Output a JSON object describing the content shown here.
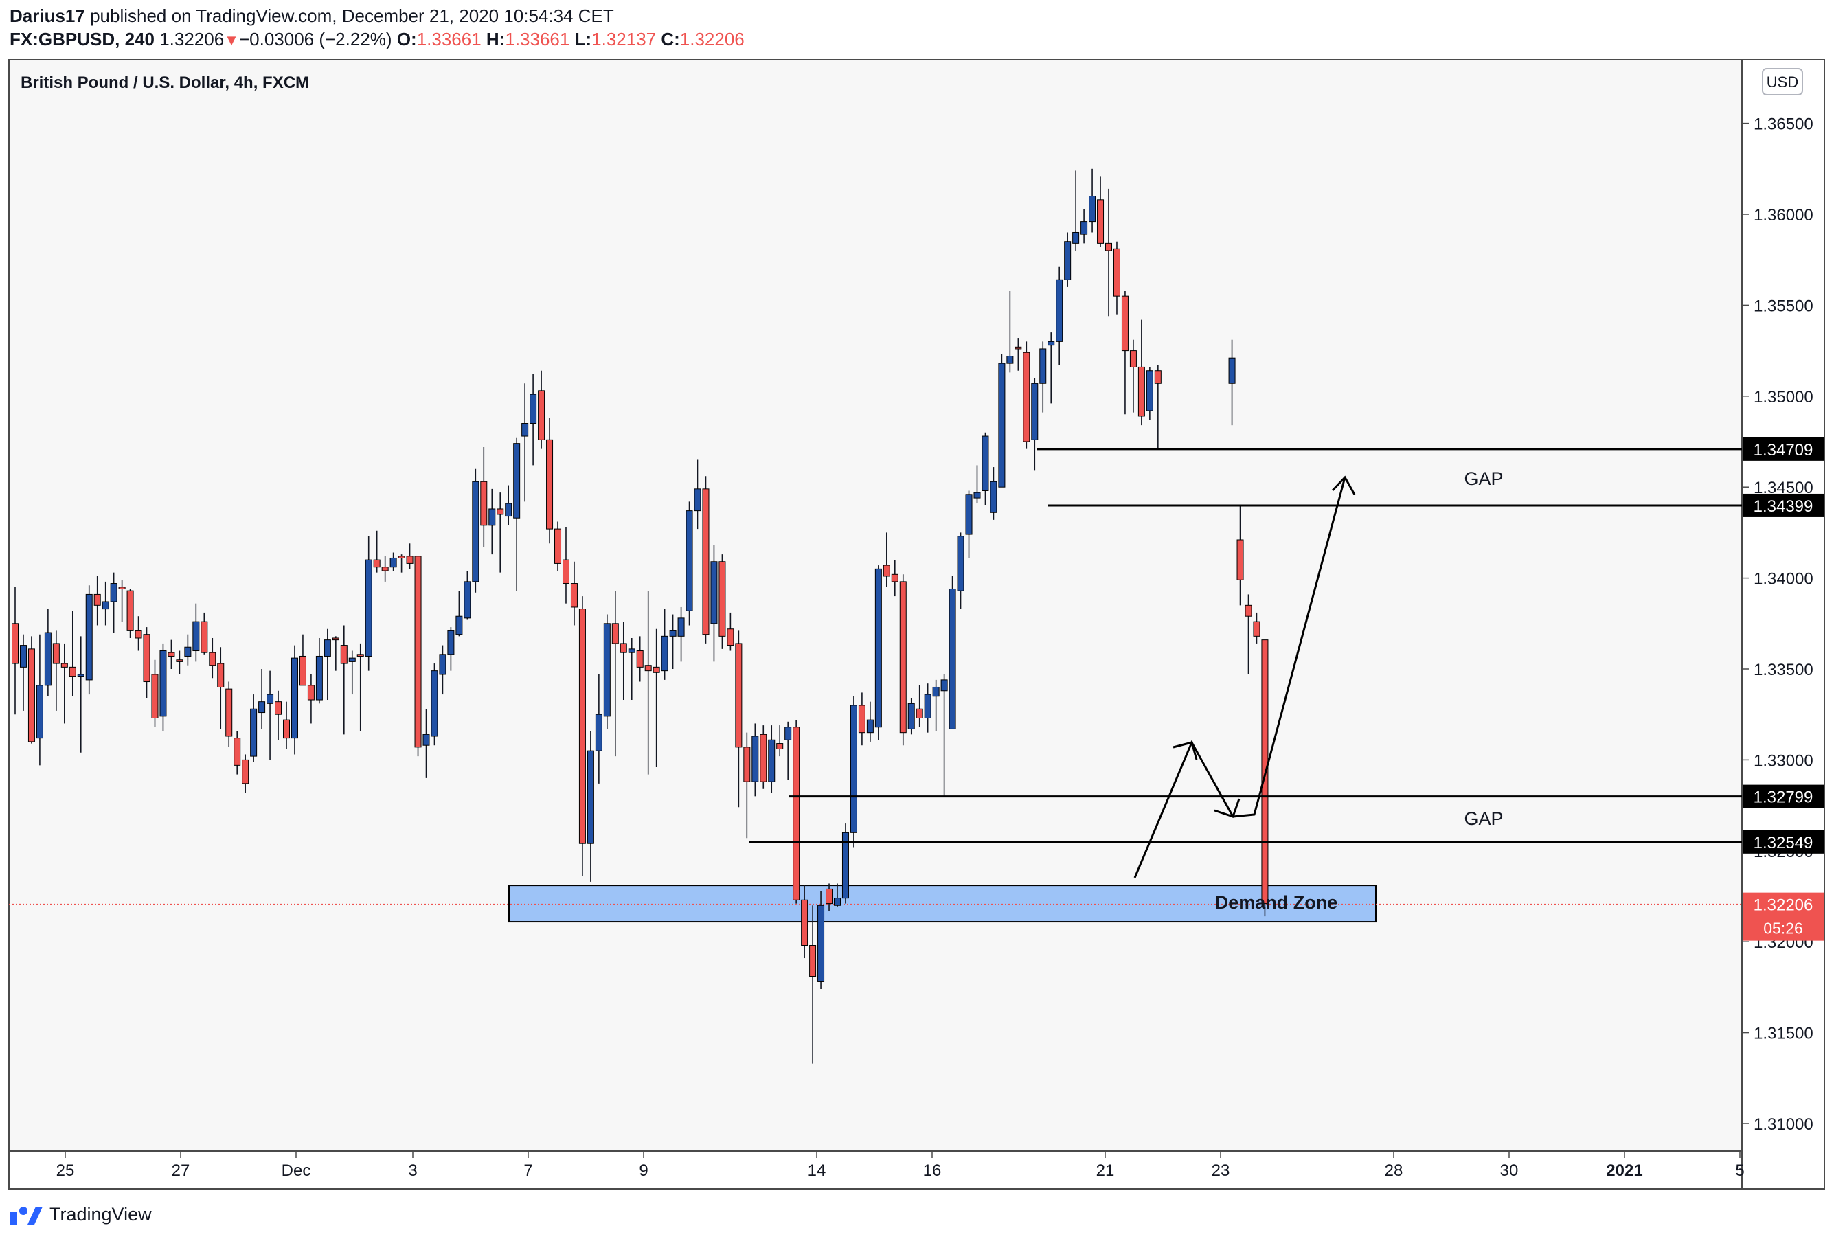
{
  "header": {
    "author": "Darius17",
    "published_text": " published on TradingView.com, December 21, 2020 10:54:34 CET",
    "symbol": "FX:GBPUSD, 240",
    "last": "1.32206",
    "change": "−0.03006 (−2.22%)",
    "o_label": "O:",
    "o_value": "1.33661",
    "h_label": "H:",
    "h_value": "1.33661",
    "l_label": "L:",
    "l_value": "1.32137",
    "c_label": "C:",
    "c_value": "1.32206"
  },
  "footer": {
    "brand": "TradingView"
  },
  "colors": {
    "up": "#2151a5",
    "down": "#ef5350",
    "wick": "#131722",
    "zone": "#9dc3f7",
    "background": "#f7f7f7"
  },
  "chart_data": {
    "type": "candlestick",
    "title": "British Pound / U.S. Dollar, 4h, FXCM",
    "currency_button": "USD",
    "ylim": [
      1.3065,
      1.3705
    ],
    "y_ticks": [
      "1.31000",
      "1.31500",
      "1.32000",
      "1.32500",
      "1.33000",
      "1.33500",
      "1.34000",
      "1.34500",
      "1.35000",
      "1.35500",
      "1.36000",
      "1.36500"
    ],
    "x_ticks": [
      "25",
      "27",
      "Dec",
      "3",
      "7",
      "9",
      "14",
      "16",
      "21",
      "23",
      "28",
      "30",
      "2021",
      "5"
    ],
    "price_labels": [
      {
        "value": 1.34709,
        "text": "1.34709"
      },
      {
        "value": 1.34399,
        "text": "1.34399"
      },
      {
        "value": 1.32799,
        "text": "1.32799"
      },
      {
        "value": 1.32549,
        "text": "1.32549"
      }
    ],
    "last_price": {
      "value": 1.32206,
      "text": "1.32206",
      "countdown": "05:26"
    },
    "annotations": {
      "gap_upper": "GAP",
      "gap_lower": "GAP",
      "demand_zone_label": "Demand Zone",
      "demand_zone": [
        1.3211,
        1.3231
      ]
    },
    "candles": [
      [
        1.3375,
        1.3353,
        1.3395,
        1.3325
      ],
      [
        1.3351,
        1.3363,
        1.3369,
        1.3327
      ],
      [
        1.3361,
        1.331,
        1.3368,
        1.3309
      ],
      [
        1.3312,
        1.3341,
        1.3369,
        1.3297
      ],
      [
        1.3341,
        1.337,
        1.3383,
        1.3335
      ],
      [
        1.3364,
        1.3353,
        1.3371,
        1.3327
      ],
      [
        1.3353,
        1.3351,
        1.3364,
        1.332
      ],
      [
        1.3351,
        1.3346,
        1.3382,
        1.3335
      ],
      [
        1.3346,
        1.3347,
        1.3368,
        1.3304
      ],
      [
        1.3344,
        1.3391,
        1.3396,
        1.3336
      ],
      [
        1.3391,
        1.3385,
        1.3401,
        1.3374
      ],
      [
        1.3383,
        1.3387,
        1.3398,
        1.3374
      ],
      [
        1.3387,
        1.3397,
        1.3403,
        1.337
      ],
      [
        1.3395,
        1.3394,
        1.3399,
        1.3376
      ],
      [
        1.3393,
        1.3371,
        1.3394,
        1.3367
      ],
      [
        1.3371,
        1.3367,
        1.3379,
        1.336
      ],
      [
        1.3369,
        1.3343,
        1.3373,
        1.3334
      ],
      [
        1.3347,
        1.3323,
        1.3355,
        1.3318
      ],
      [
        1.3324,
        1.336,
        1.3364,
        1.3316
      ],
      [
        1.3359,
        1.3357,
        1.3366,
        1.335
      ],
      [
        1.3355,
        1.3354,
        1.336,
        1.3347
      ],
      [
        1.3357,
        1.3362,
        1.3369,
        1.3352
      ],
      [
        1.336,
        1.3376,
        1.3386,
        1.3354
      ],
      [
        1.3376,
        1.3359,
        1.3381,
        1.3358
      ],
      [
        1.3359,
        1.3352,
        1.3367,
        1.3345
      ],
      [
        1.3353,
        1.334,
        1.3362,
        1.3317
      ],
      [
        1.3339,
        1.3313,
        1.3343,
        1.3307
      ],
      [
        1.3312,
        1.3297,
        1.3316,
        1.3292
      ],
      [
        1.33,
        1.3287,
        1.3303,
        1.3282
      ],
      [
        1.3302,
        1.3328,
        1.3336,
        1.3299
      ],
      [
        1.3326,
        1.3332,
        1.335,
        1.3317
      ],
      [
        1.3331,
        1.3336,
        1.3349,
        1.33
      ],
      [
        1.3332,
        1.3325,
        1.3338,
        1.3311
      ],
      [
        1.3322,
        1.3312,
        1.3332,
        1.3306
      ],
      [
        1.3312,
        1.3356,
        1.3363,
        1.3303
      ],
      [
        1.3357,
        1.3341,
        1.3369,
        1.3341
      ],
      [
        1.3341,
        1.3333,
        1.3347,
        1.332
      ],
      [
        1.3333,
        1.3357,
        1.3367,
        1.3331
      ],
      [
        1.3357,
        1.3366,
        1.3372,
        1.3333
      ],
      [
        1.3367,
        1.3366,
        1.3368,
        1.3349
      ],
      [
        1.3363,
        1.3353,
        1.3374,
        1.3314
      ],
      [
        1.3354,
        1.3356,
        1.336,
        1.3336
      ],
      [
        1.3358,
        1.3357,
        1.3364,
        1.3316
      ],
      [
        1.3357,
        1.341,
        1.3423,
        1.3349
      ],
      [
        1.341,
        1.3406,
        1.3426,
        1.3403
      ],
      [
        1.3406,
        1.3404,
        1.3412,
        1.3398
      ],
      [
        1.3406,
        1.3411,
        1.3414,
        1.3404
      ],
      [
        1.3412,
        1.3411,
        1.3413,
        1.3403
      ],
      [
        1.3412,
        1.3408,
        1.3419,
        1.3405
      ],
      [
        1.3412,
        1.3307,
        1.3412,
        1.3302
      ],
      [
        1.3308,
        1.3314,
        1.3328,
        1.329
      ],
      [
        1.3313,
        1.3349,
        1.3353,
        1.3308
      ],
      [
        1.3347,
        1.3358,
        1.3363,
        1.3336
      ],
      [
        1.3358,
        1.3371,
        1.3373,
        1.3349
      ],
      [
        1.3369,
        1.3379,
        1.3393,
        1.3368
      ],
      [
        1.3378,
        1.3398,
        1.3404,
        1.3377
      ],
      [
        1.3398,
        1.3453,
        1.346,
        1.3392
      ],
      [
        1.3453,
        1.3429,
        1.3472,
        1.3417
      ],
      [
        1.3429,
        1.3438,
        1.3449,
        1.3413
      ],
      [
        1.3438,
        1.3435,
        1.3447,
        1.3403
      ],
      [
        1.3434,
        1.3441,
        1.3451,
        1.3429
      ],
      [
        1.3433,
        1.3474,
        1.3477,
        1.3393
      ],
      [
        1.3478,
        1.3485,
        1.3507,
        1.3442
      ],
      [
        1.3485,
        1.3501,
        1.3512,
        1.3462
      ],
      [
        1.3503,
        1.3476,
        1.3514,
        1.3471
      ],
      [
        1.3476,
        1.3427,
        1.3488,
        1.3419
      ],
      [
        1.3427,
        1.3408,
        1.3431,
        1.3404
      ],
      [
        1.341,
        1.3397,
        1.3428,
        1.3386
      ],
      [
        1.3397,
        1.3384,
        1.3409,
        1.3374
      ],
      [
        1.3383,
        1.3254,
        1.339,
        1.3236
      ],
      [
        1.3254,
        1.3305,
        1.3316,
        1.3233
      ],
      [
        1.3305,
        1.3325,
        1.3347,
        1.3287
      ],
      [
        1.3324,
        1.3375,
        1.338,
        1.3317
      ],
      [
        1.3375,
        1.3364,
        1.3393,
        1.3302
      ],
      [
        1.3364,
        1.3359,
        1.3376,
        1.3333
      ],
      [
        1.3359,
        1.3361,
        1.3367,
        1.3333
      ],
      [
        1.336,
        1.3351,
        1.3368,
        1.3343
      ],
      [
        1.3352,
        1.3349,
        1.3393,
        1.3292
      ],
      [
        1.3351,
        1.3348,
        1.3372,
        1.3296
      ],
      [
        1.3349,
        1.3368,
        1.3383,
        1.3344
      ],
      [
        1.3368,
        1.3371,
        1.338,
        1.335
      ],
      [
        1.3368,
        1.3378,
        1.3384,
        1.3354
      ],
      [
        1.3382,
        1.3437,
        1.3442,
        1.3374
      ],
      [
        1.3437,
        1.3449,
        1.3465,
        1.3427
      ],
      [
        1.3449,
        1.3369,
        1.3456,
        1.3364
      ],
      [
        1.3375,
        1.3409,
        1.3418,
        1.3354
      ],
      [
        1.3409,
        1.3368,
        1.3413,
        1.3361
      ],
      [
        1.3372,
        1.3363,
        1.3381,
        1.336
      ],
      [
        1.3364,
        1.3307,
        1.3371,
        1.3274
      ],
      [
        1.3307,
        1.3288,
        1.3315,
        1.3257
      ],
      [
        1.3288,
        1.3313,
        1.332,
        1.328
      ],
      [
        1.3314,
        1.3288,
        1.3319,
        1.3284
      ],
      [
        1.3288,
        1.3311,
        1.3319,
        1.3282
      ],
      [
        1.3309,
        1.3306,
        1.3319,
        1.3302
      ],
      [
        1.3311,
        1.3318,
        1.3321,
        1.3289
      ],
      [
        1.3318,
        1.3223,
        1.3322,
        1.3221
      ],
      [
        1.3223,
        1.3198,
        1.3231,
        1.3191
      ],
      [
        1.3198,
        1.3181,
        1.322,
        1.3133
      ],
      [
        1.3178,
        1.322,
        1.3228,
        1.3174
      ],
      [
        1.3229,
        1.3221,
        1.3232,
        1.3217
      ],
      [
        1.322,
        1.3224,
        1.3232,
        1.3219
      ],
      [
        1.3224,
        1.326,
        1.3265,
        1.3221
      ],
      [
        1.326,
        1.333,
        1.3335,
        1.3252
      ],
      [
        1.333,
        1.3315,
        1.3337,
        1.3308
      ],
      [
        1.3315,
        1.3322,
        1.3332,
        1.331
      ],
      [
        1.3318,
        1.3405,
        1.3407,
        1.3311
      ],
      [
        1.3407,
        1.3401,
        1.3425,
        1.3395
      ],
      [
        1.3402,
        1.3398,
        1.341,
        1.339
      ],
      [
        1.3398,
        1.3315,
        1.3402,
        1.3308
      ],
      [
        1.3317,
        1.3331,
        1.3334,
        1.3314
      ],
      [
        1.3328,
        1.3323,
        1.3341,
        1.3318
      ],
      [
        1.3323,
        1.3336,
        1.3342,
        1.3315
      ],
      [
        1.3335,
        1.334,
        1.3344,
        1.3316
      ],
      [
        1.3338,
        1.3344,
        1.3347,
        1.328
      ],
      [
        1.3317,
        1.3394,
        1.3401,
        1.3317
      ],
      [
        1.3393,
        1.3423,
        1.3425,
        1.3383
      ],
      [
        1.3424,
        1.3446,
        1.3448,
        1.3411
      ],
      [
        1.3444,
        1.3447,
        1.3462,
        1.3441
      ],
      [
        1.3448,
        1.3478,
        1.348,
        1.344
      ],
      [
        1.3436,
        1.3453,
        1.3461,
        1.3432
      ],
      [
        1.345,
        1.3518,
        1.3523,
        1.345
      ],
      [
        1.3518,
        1.3522,
        1.3558,
        1.3513
      ],
      [
        1.3527,
        1.3526,
        1.3532,
        1.3514
      ],
      [
        1.3524,
        1.3475,
        1.353,
        1.3471
      ],
      [
        1.3476,
        1.3507,
        1.351,
        1.3459
      ],
      [
        1.3507,
        1.3526,
        1.353,
        1.3491
      ],
      [
        1.3528,
        1.353,
        1.3535,
        1.3496
      ],
      [
        1.353,
        1.3564,
        1.3571,
        1.3517
      ],
      [
        1.3564,
        1.3585,
        1.359,
        1.356
      ],
      [
        1.3584,
        1.359,
        1.3624,
        1.358
      ],
      [
        1.3589,
        1.3596,
        1.3603,
        1.3584
      ],
      [
        1.3596,
        1.361,
        1.3625,
        1.359
      ],
      [
        1.3608,
        1.3584,
        1.3621,
        1.3582
      ],
      [
        1.3584,
        1.358,
        1.3614,
        1.3544
      ],
      [
        1.3581,
        1.3555,
        1.3585,
        1.3545
      ],
      [
        1.3555,
        1.3525,
        1.3558,
        1.349
      ],
      [
        1.3525,
        1.3516,
        1.3531,
        1.3491
      ],
      [
        1.3516,
        1.3489,
        1.3542,
        1.3484
      ],
      [
        1.3492,
        1.3514,
        1.3516,
        1.3487
      ],
      [
        1.3514,
        1.3507,
        1.3517,
        1.3471
      ],
      [
        1.3507,
        1.3521,
        1.3531,
        1.3484
      ],
      [
        1.3421,
        1.3399,
        1.344,
        1.3385
      ],
      [
        1.3385,
        1.3379,
        1.3391,
        1.3347
      ],
      [
        1.3376,
        1.3368,
        1.3381,
        1.3364
      ],
      [
        1.3366,
        1.3221,
        1.3366,
        1.3214
      ]
    ]
  }
}
